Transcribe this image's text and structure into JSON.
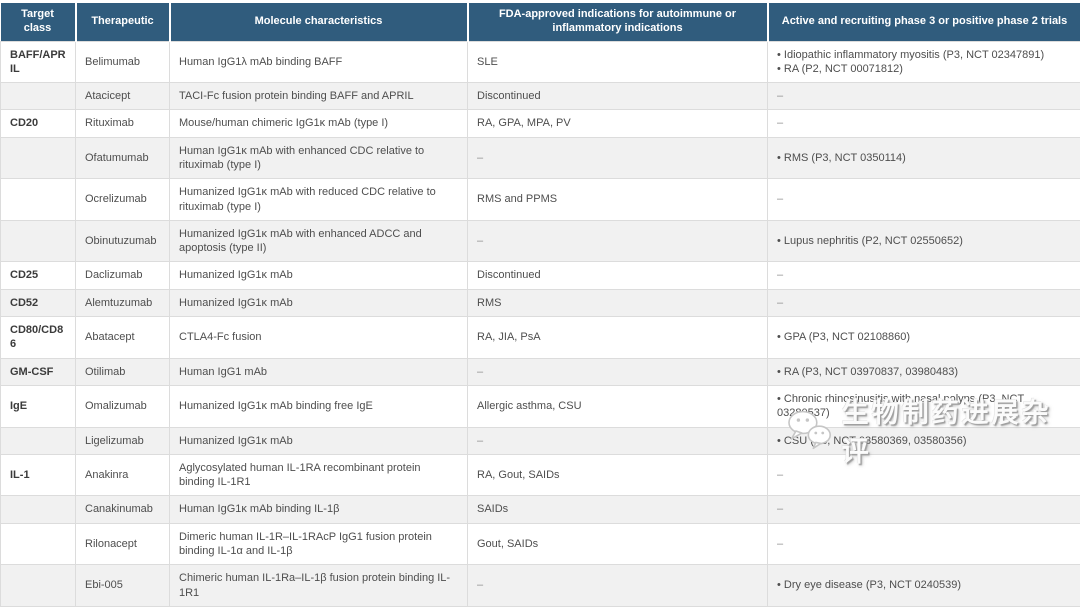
{
  "chars": {
    "bullet": "•",
    "dash": "–"
  },
  "colors": {
    "header_bg": "#305C7D",
    "header_text": "#FFFFFF",
    "row_alt_bg": "#F1F1F1",
    "body_text": "#4E4E4E",
    "border": "#DCDCDC",
    "dash_text": "#8F8F8F"
  },
  "table": {
    "columns": [
      {
        "label": "Target class"
      },
      {
        "label": "Therapeutic"
      },
      {
        "label": "Molecule characteristics"
      },
      {
        "label": "FDA-approved indications for autoimmune or inflammatory indications"
      },
      {
        "label": "Active and recruiting phase 3 or positive phase 2 trials"
      }
    ],
    "rows": [
      {
        "target_class": "BAFF/APRIL",
        "therapeutic": "Belimumab",
        "molecule": "Human IgG1λ mAb binding BAFF",
        "fda": "SLE",
        "trials": [
          "Idiopathic inflammatory myositis (P3, NCT 02347891)",
          "RA (P2, NCT 00071812)"
        ]
      },
      {
        "target_class": "",
        "therapeutic": "Atacicept",
        "molecule": "TACI-Fc fusion protein binding BAFF and APRIL",
        "fda": "Discontinued",
        "trials": []
      },
      {
        "target_class": "CD20",
        "therapeutic": "Rituximab",
        "molecule": "Mouse/human chimeric IgG1κ mAb (type I)",
        "fda": "RA, GPA, MPA, PV",
        "trials": []
      },
      {
        "target_class": "",
        "therapeutic": "Ofatumumab",
        "molecule": "Human IgG1κ mAb with enhanced CDC relative to rituximab (type I)",
        "fda": "–",
        "trials": [
          "RMS (P3, NCT 0350114)"
        ]
      },
      {
        "target_class": "",
        "therapeutic": "Ocrelizumab",
        "molecule": "Humanized IgG1κ mAb with reduced CDC relative to rituximab (type I)",
        "fda": "RMS and PPMS",
        "trials": []
      },
      {
        "target_class": "",
        "therapeutic": "Obinutuzumab",
        "molecule": "Humanized IgG1κ mAb with enhanced ADCC and apoptosis (type II)",
        "fda": "–",
        "trials": [
          "Lupus nephritis (P2, NCT 02550652)"
        ]
      },
      {
        "target_class": "CD25",
        "therapeutic": "Daclizumab",
        "molecule": "Humanized IgG1κ mAb",
        "fda": "Discontinued",
        "trials": []
      },
      {
        "target_class": "CD52",
        "therapeutic": "Alemtuzumab",
        "molecule": "Humanized IgG1κ mAb",
        "fda": "RMS",
        "trials": []
      },
      {
        "target_class": "CD80/CD86",
        "therapeutic": "Abatacept",
        "molecule": "CTLA4-Fc fusion",
        "fda": "RA, JIA, PsA",
        "trials": [
          "GPA (P3, NCT 02108860)"
        ]
      },
      {
        "target_class": "GM-CSF",
        "therapeutic": "Otilimab",
        "molecule": "Human IgG1 mAb",
        "fda": "–",
        "trials": [
          "RA (P3, NCT 03970837, 03980483)"
        ]
      },
      {
        "target_class": "IgE",
        "therapeutic": "Omalizumab",
        "molecule": "Humanized IgG1κ mAb binding free IgE",
        "fda": "Allergic asthma, CSU",
        "trials": [
          "Chronic rhinosinusitis with nasal polyps (P3, NCT 03280537)"
        ]
      },
      {
        "target_class": "",
        "therapeutic": "Ligelizumab",
        "molecule": "Humanized IgG1κ mAb",
        "fda": "–",
        "trials": [
          "CSU (P3, NCT 03580369, 03580356)"
        ]
      },
      {
        "target_class": "IL-1",
        "therapeutic": "Anakinra",
        "molecule": "Aglycosylated human IL-1RA recombinant protein binding IL-1R1",
        "fda": "RA, Gout, SAIDs",
        "trials": []
      },
      {
        "target_class": "",
        "therapeutic": "Canakinumab",
        "molecule": "Human IgG1κ mAb binding IL-1β",
        "fda": "SAIDs",
        "trials": []
      },
      {
        "target_class": "",
        "therapeutic": "Rilonacept",
        "molecule": "Dimeric human IL-1R–IL-1RAcP IgG1 fusion protein binding IL-1α and IL-1β",
        "fda": "Gout, SAIDs",
        "trials": []
      },
      {
        "target_class": "",
        "therapeutic": "Ebi-005",
        "molecule": "Chimeric human IL-1Ra–IL-1β fusion protein binding IL-1R1",
        "fda": "–",
        "trials": [
          "Dry eye disease (P3, NCT 0240539)"
        ]
      }
    ]
  },
  "watermark": {
    "text": "生物制药进展杂评",
    "icon": "wechat-bubbles-icon"
  }
}
